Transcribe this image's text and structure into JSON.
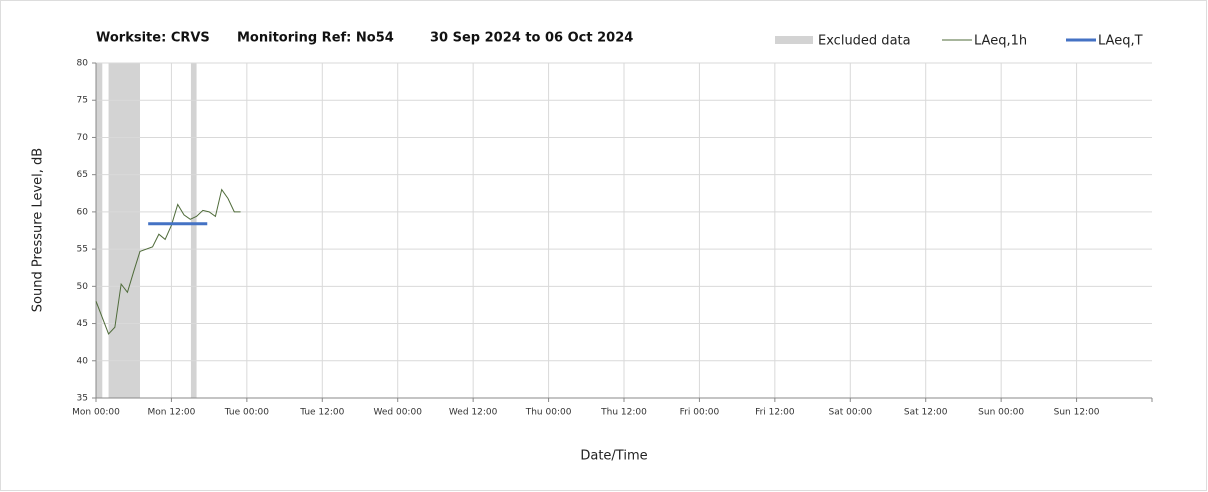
{
  "chart_data": {
    "type": "line",
    "title": [
      "Worksite: CRVS",
      "Monitoring Ref: No54",
      "30 Sep 2024 to 06 Oct 2024"
    ],
    "xlabel": "Date/Time",
    "ylabel": "Sound Pressure Level, dB",
    "xlim": [
      0,
      168
    ],
    "ylim": [
      35,
      80
    ],
    "xticks": [
      {
        "value": 0,
        "label": "Mon 00:00"
      },
      {
        "value": 12,
        "label": "Mon 12:00"
      },
      {
        "value": 24,
        "label": "Tue 00:00"
      },
      {
        "value": 36,
        "label": "Tue 12:00"
      },
      {
        "value": 48,
        "label": "Wed 00:00"
      },
      {
        "value": 60,
        "label": "Wed 12:00"
      },
      {
        "value": 72,
        "label": "Thu 00:00"
      },
      {
        "value": 84,
        "label": "Thu 12:00"
      },
      {
        "value": 96,
        "label": "Fri 00:00"
      },
      {
        "value": 108,
        "label": "Fri 12:00"
      },
      {
        "value": 120,
        "label": "Sat 00:00"
      },
      {
        "value": 132,
        "label": "Sat 12:00"
      },
      {
        "value": 144,
        "label": "Sun 00:00"
      },
      {
        "value": 156,
        "label": "Sun 12:00"
      }
    ],
    "yticks": [
      35,
      40,
      45,
      50,
      55,
      60,
      65,
      70,
      75,
      80
    ],
    "grid": true,
    "excluded": {
      "name": "Excluded data",
      "color": "#d3d3d3",
      "ranges": [
        [
          0,
          1
        ],
        [
          2,
          7
        ],
        [
          15.1,
          16
        ]
      ]
    },
    "series": [
      {
        "name": "LAeq,1h",
        "color": "#4f6b3a",
        "width": 1,
        "x": [
          0,
          2,
          3,
          4,
          5,
          6,
          7,
          9,
          10,
          11,
          12,
          13,
          14,
          15,
          16,
          17,
          18,
          19,
          20,
          21,
          22,
          23
        ],
        "values": [
          48,
          43.6,
          44.5,
          50.3,
          49.2,
          52,
          54.7,
          55.3,
          57,
          56.3,
          58.2,
          61,
          59.6,
          59,
          59.4,
          60.2,
          60,
          59.4,
          63,
          61.8,
          60,
          60
        ]
      },
      {
        "name": "LAeq,T",
        "color": "#4472c4",
        "width": 3,
        "x": [
          8.3,
          17.7
        ],
        "values": [
          58.4,
          58.4
        ]
      }
    ]
  }
}
